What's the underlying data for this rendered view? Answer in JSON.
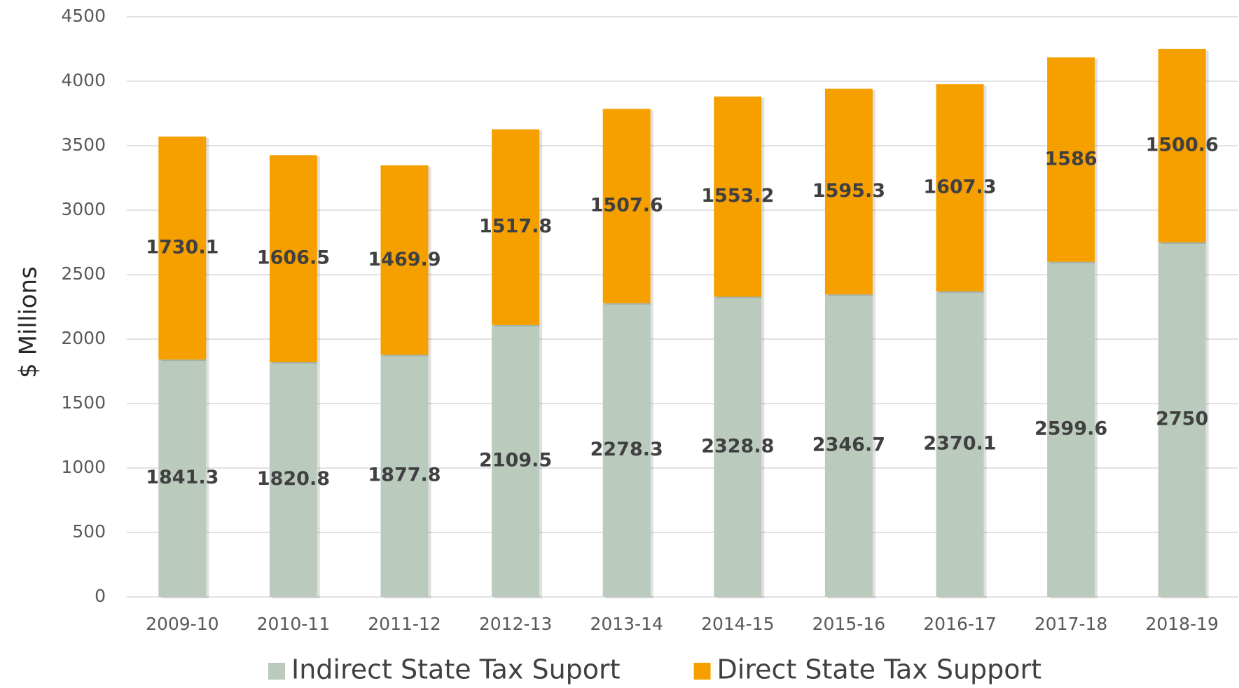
{
  "chart_data": {
    "type": "stacked_bar",
    "y_label": "$ Millions",
    "categories": [
      "2009-10",
      "2010-11",
      "2011-12",
      "2012-13",
      "2013-14",
      "2014-15",
      "2015-16",
      "2016-17",
      "2017-18",
      "2018-19"
    ],
    "series": [
      {
        "name": "Indirect State Tax Suport",
        "color": "#bacbbe",
        "values": [
          1841.3,
          1820.8,
          1877.8,
          2109.5,
          2278.3,
          2328.8,
          2346.7,
          2370.1,
          2599.6,
          2750
        ]
      },
      {
        "name": "Direct State Tax Support",
        "color": "#f6a000",
        "values": [
          1730.1,
          1606.5,
          1469.9,
          1517.8,
          1507.6,
          1553.2,
          1595.3,
          1607.3,
          1586,
          1500.6
        ]
      }
    ],
    "ylim": [
      0,
      4500
    ],
    "yticks": [
      0,
      500,
      1000,
      1500,
      2000,
      2500,
      3000,
      3500,
      4000,
      4500
    ],
    "grid": true,
    "legend": "bottom"
  }
}
